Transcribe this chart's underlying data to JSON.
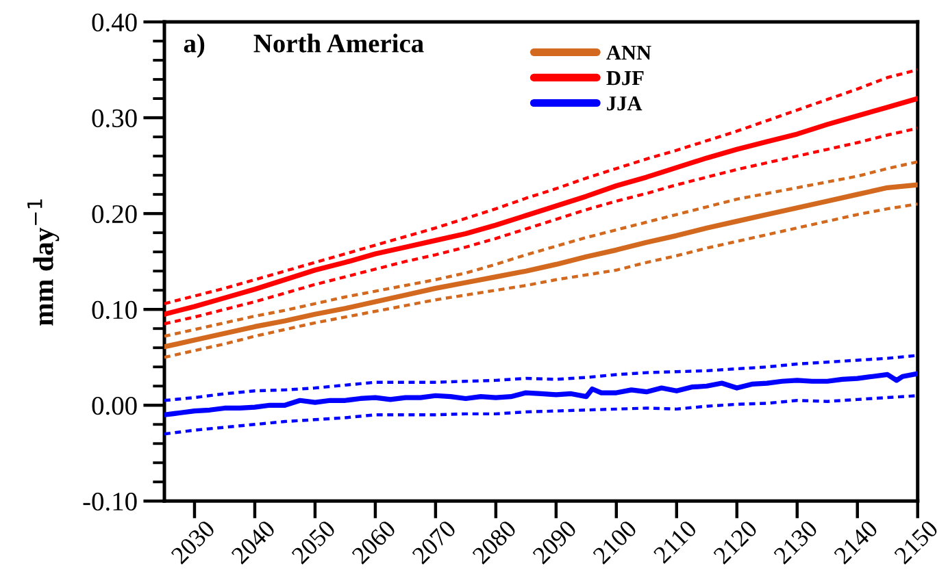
{
  "chart_data": {
    "type": "line",
    "title": "North America",
    "ylabel": "mm day$^{−1}$",
    "annotations": [
      "a)"
    ],
    "x": [
      2025,
      2030,
      2035,
      2040,
      2045,
      2050,
      2055,
      2060,
      2065,
      2070,
      2075,
      2080,
      2085,
      2090,
      2095,
      2100,
      2105,
      2110,
      2115,
      2120,
      2125,
      2130,
      2135,
      2140,
      2145,
      2150
    ],
    "xlim": [
      2025,
      2150
    ],
    "xticks": [
      2030,
      2040,
      2050,
      2060,
      2070,
      2080,
      2090,
      2100,
      2110,
      2120,
      2130,
      2140,
      2150
    ],
    "ylim": [
      -0.1,
      0.4
    ],
    "yticks": [
      {
        "value": -0.1,
        "label": "-0.10"
      },
      {
        "value": -0.08,
        "label": null
      },
      {
        "value": -0.06,
        "label": null
      },
      {
        "value": -0.04,
        "label": null
      },
      {
        "value": -0.02,
        "label": null
      },
      {
        "value": 0.0,
        "label": "0.00"
      },
      {
        "value": 0.02,
        "label": null
      },
      {
        "value": 0.04,
        "label": null
      },
      {
        "value": 0.06,
        "label": null
      },
      {
        "value": 0.08,
        "label": null
      },
      {
        "value": 0.1,
        "label": "0.10"
      },
      {
        "value": 0.12,
        "label": null
      },
      {
        "value": 0.14,
        "label": null
      },
      {
        "value": 0.16,
        "label": null
      },
      {
        "value": 0.18,
        "label": null
      },
      {
        "value": 0.2,
        "label": "0.20"
      },
      {
        "value": 0.22,
        "label": null
      },
      {
        "value": 0.24,
        "label": null
      },
      {
        "value": 0.26,
        "label": null
      },
      {
        "value": 0.28,
        "label": null
      },
      {
        "value": 0.3,
        "label": "0.30"
      },
      {
        "value": 0.32,
        "label": null
      },
      {
        "value": 0.34,
        "label": null
      },
      {
        "value": 0.36,
        "label": null
      },
      {
        "value": 0.38,
        "label": null
      },
      {
        "value": 0.4,
        "label": "0.40"
      }
    ],
    "legend": "top",
    "series": [
      {
        "name": "ANN",
        "color": "#d2691e",
        "line_style": "solid",
        "values": [
          0.061,
          0.068,
          0.075,
          0.082,
          0.088,
          0.095,
          0.101,
          0.108,
          0.115,
          0.122,
          0.128,
          0.134,
          0.14,
          0.147,
          0.155,
          0.162,
          0.17,
          0.177,
          0.185,
          0.192,
          0.199,
          0.206,
          0.213,
          0.22,
          0.227,
          0.23
        ]
      },
      {
        "color": "#d2691e",
        "line_style": "dashed",
        "values": [
          0.072,
          0.079,
          0.086,
          0.093,
          0.099,
          0.106,
          0.113,
          0.119,
          0.125,
          0.131,
          0.138,
          0.147,
          0.157,
          0.166,
          0.175,
          0.183,
          0.191,
          0.199,
          0.207,
          0.215,
          0.221,
          0.227,
          0.233,
          0.239,
          0.247,
          0.254
        ]
      },
      {
        "color": "#d2691e",
        "line_style": "dashed",
        "values": [
          0.05,
          0.057,
          0.064,
          0.072,
          0.079,
          0.086,
          0.092,
          0.098,
          0.104,
          0.11,
          0.115,
          0.12,
          0.125,
          0.131,
          0.136,
          0.141,
          0.149,
          0.156,
          0.164,
          0.171,
          0.178,
          0.185,
          0.192,
          0.199,
          0.205,
          0.21
        ]
      },
      {
        "name": "DJF",
        "color": "#ff0000",
        "line_style": "solid",
        "values": [
          0.095,
          0.103,
          0.112,
          0.121,
          0.131,
          0.141,
          0.149,
          0.158,
          0.165,
          0.172,
          0.179,
          0.188,
          0.198,
          0.208,
          0.218,
          0.229,
          0.238,
          0.248,
          0.258,
          0.267,
          0.275,
          0.283,
          0.293,
          0.302,
          0.311,
          0.32
        ]
      },
      {
        "color": "#ff0000",
        "line_style": "dashed",
        "values": [
          0.106,
          0.114,
          0.122,
          0.131,
          0.14,
          0.149,
          0.158,
          0.167,
          0.176,
          0.185,
          0.195,
          0.205,
          0.216,
          0.226,
          0.237,
          0.247,
          0.257,
          0.266,
          0.276,
          0.286,
          0.297,
          0.308,
          0.319,
          0.33,
          0.342,
          0.35
        ]
      },
      {
        "color": "#ff0000",
        "line_style": "dashed",
        "values": [
          0.085,
          0.092,
          0.1,
          0.108,
          0.117,
          0.126,
          0.134,
          0.142,
          0.15,
          0.157,
          0.165,
          0.174,
          0.184,
          0.194,
          0.204,
          0.213,
          0.221,
          0.23,
          0.238,
          0.246,
          0.253,
          0.26,
          0.267,
          0.274,
          0.282,
          0.289
        ]
      },
      {
        "name": "JJA",
        "color": "#0000ff",
        "line_style": "solid",
        "x": [
          2025,
          2027.5,
          2030,
          2032.5,
          2035,
          2037.5,
          2040,
          2042.5,
          2045,
          2047.5,
          2050,
          2052.5,
          2055,
          2057.5,
          2060,
          2062.5,
          2065,
          2067.5,
          2070,
          2072.5,
          2075,
          2077.5,
          2080,
          2082.5,
          2085,
          2087.5,
          2090,
          2092.5,
          2095,
          2096,
          2097.5,
          2100,
          2102.5,
          2105,
          2107.5,
          2110,
          2112.5,
          2115,
          2117.5,
          2120,
          2122.5,
          2125,
          2127.5,
          2130,
          2132.5,
          2135,
          2137.5,
          2140,
          2142.5,
          2145,
          2146.5,
          2147.5,
          2150
        ],
        "values": [
          -0.01,
          -0.008,
          -0.006,
          -0.005,
          -0.003,
          -0.003,
          -0.002,
          0.0,
          0.0,
          0.005,
          0.003,
          0.005,
          0.005,
          0.007,
          0.008,
          0.006,
          0.008,
          0.008,
          0.01,
          0.009,
          0.007,
          0.009,
          0.008,
          0.009,
          0.013,
          0.012,
          0.011,
          0.012,
          0.009,
          0.017,
          0.013,
          0.013,
          0.016,
          0.014,
          0.018,
          0.015,
          0.019,
          0.02,
          0.023,
          0.018,
          0.022,
          0.023,
          0.025,
          0.026,
          0.025,
          0.025,
          0.027,
          0.028,
          0.03,
          0.032,
          0.026,
          0.03,
          0.033
        ]
      },
      {
        "color": "#0000ff",
        "line_style": "dashed",
        "values": [
          0.005,
          0.008,
          0.012,
          0.015,
          0.016,
          0.018,
          0.021,
          0.024,
          0.024,
          0.024,
          0.025,
          0.026,
          0.028,
          0.027,
          0.029,
          0.032,
          0.034,
          0.035,
          0.036,
          0.038,
          0.04,
          0.043,
          0.045,
          0.047,
          0.049,
          0.052
        ]
      },
      {
        "color": "#0000ff",
        "line_style": "dashed",
        "values": [
          -0.03,
          -0.026,
          -0.023,
          -0.02,
          -0.017,
          -0.015,
          -0.013,
          -0.01,
          -0.01,
          -0.01,
          -0.009,
          -0.009,
          -0.007,
          -0.006,
          -0.005,
          -0.004,
          -0.003,
          -0.004,
          -0.001,
          0.001,
          0.002,
          0.005,
          0.004,
          0.006,
          0.008,
          0.01
        ]
      }
    ]
  }
}
